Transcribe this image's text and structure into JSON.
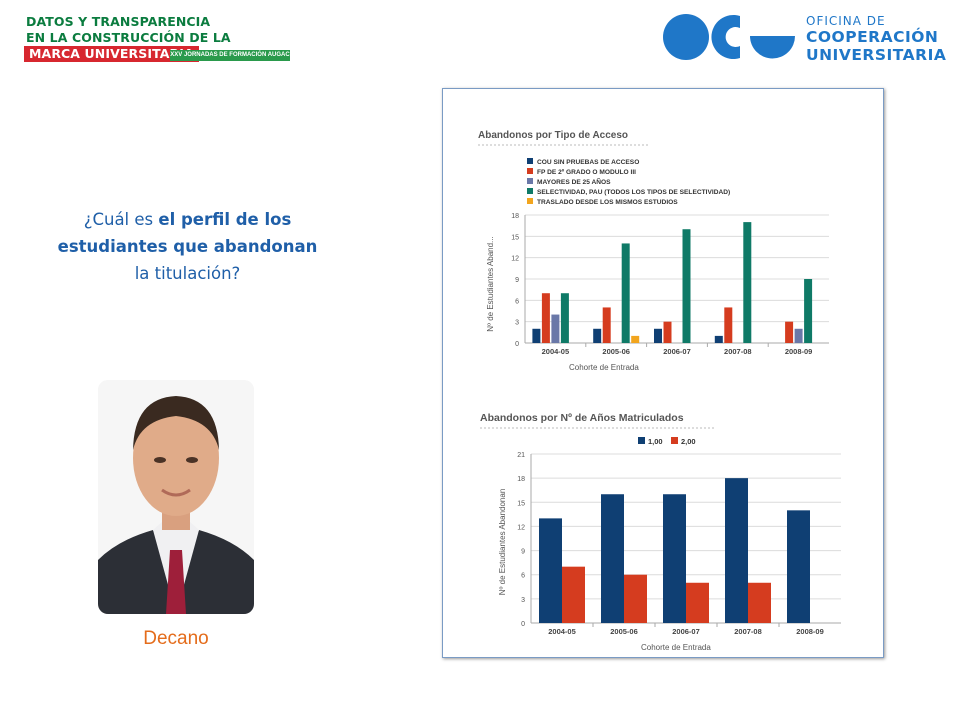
{
  "header": {
    "title_lines": [
      "DATOS Y TRANSPARENCIA",
      "EN LA CONSTRUCCIÓN DE LA",
      "MARCA UNIVERSITARIA"
    ],
    "jornadas": "XXV JORNADAS DE FORMACIÓN AUGAC",
    "logo_text": [
      "OFICINA DE",
      "COOPERACIÓN",
      "UNIVERSITARIA"
    ]
  },
  "question": {
    "p1": "¿Cuál es ",
    "p2": "el perfil de los estudiantes que abandonan",
    "p3": " la titulación?"
  },
  "caption": "Decano",
  "colors": {
    "brand_blue": "#1f77c8",
    "title_green": "#0b7c3f",
    "title_red": "#d7272f",
    "series_navy": "#0f3f73",
    "series_red": "#d53c1f",
    "series_purple": "#6a78a8",
    "series_teal": "#0f7a67",
    "series_orange": "#f2a51e"
  },
  "chart_data": [
    {
      "type": "bar",
      "title": "Abandonos por Tipo de Acceso",
      "xlabel": "Cohorte de Entrada",
      "ylabel": "Nº de Estudiantes Aband...",
      "ylim": [
        0,
        18
      ],
      "yticks": [
        0,
        3,
        6,
        9,
        12,
        15,
        18
      ],
      "grid": true,
      "legend": "top-left",
      "categories": [
        "2004-05",
        "2005-06",
        "2006-07",
        "2007-08",
        "2008-09"
      ],
      "series": [
        {
          "name": "COU SIN PRUEBAS DE ACCESO",
          "color": "#0f3f73",
          "values": [
            2,
            2,
            2,
            1,
            0
          ]
        },
        {
          "name": "FP DE 2º GRADO O MODULO III",
          "color": "#d53c1f",
          "values": [
            7,
            5,
            3,
            5,
            3
          ]
        },
        {
          "name": "MAYORES DE 25 AÑOS",
          "color": "#6a78a8",
          "values": [
            4,
            0,
            0,
            0,
            2
          ]
        },
        {
          "name": "SELECTIVIDAD, PAU (TODOS LOS TIPOS DE SELECTIVIDAD)",
          "color": "#0f7a67",
          "values": [
            7,
            14,
            16,
            17,
            9
          ]
        },
        {
          "name": "TRASLADO DESDE LOS MISMOS ESTUDIOS",
          "color": "#f2a51e",
          "values": [
            0,
            1,
            0,
            0,
            0
          ]
        }
      ]
    },
    {
      "type": "bar",
      "title": "Abandonos por Nº de Años Matriculados",
      "xlabel": "Cohorte de Entrada",
      "ylabel": "Nº de Estudiantes Abandonan",
      "ylim": [
        0,
        21
      ],
      "yticks": [
        0,
        3,
        6,
        9,
        12,
        15,
        18,
        21
      ],
      "grid": true,
      "legend": "top",
      "categories": [
        "2004-05",
        "2005-06",
        "2006-07",
        "2007-08",
        "2008-09"
      ],
      "series": [
        {
          "name": "1,00",
          "color": "#0f3f73",
          "values": [
            13,
            16,
            16,
            18,
            14
          ]
        },
        {
          "name": "2,00",
          "color": "#d53c1f",
          "values": [
            7,
            6,
            5,
            5,
            0
          ]
        }
      ]
    }
  ]
}
